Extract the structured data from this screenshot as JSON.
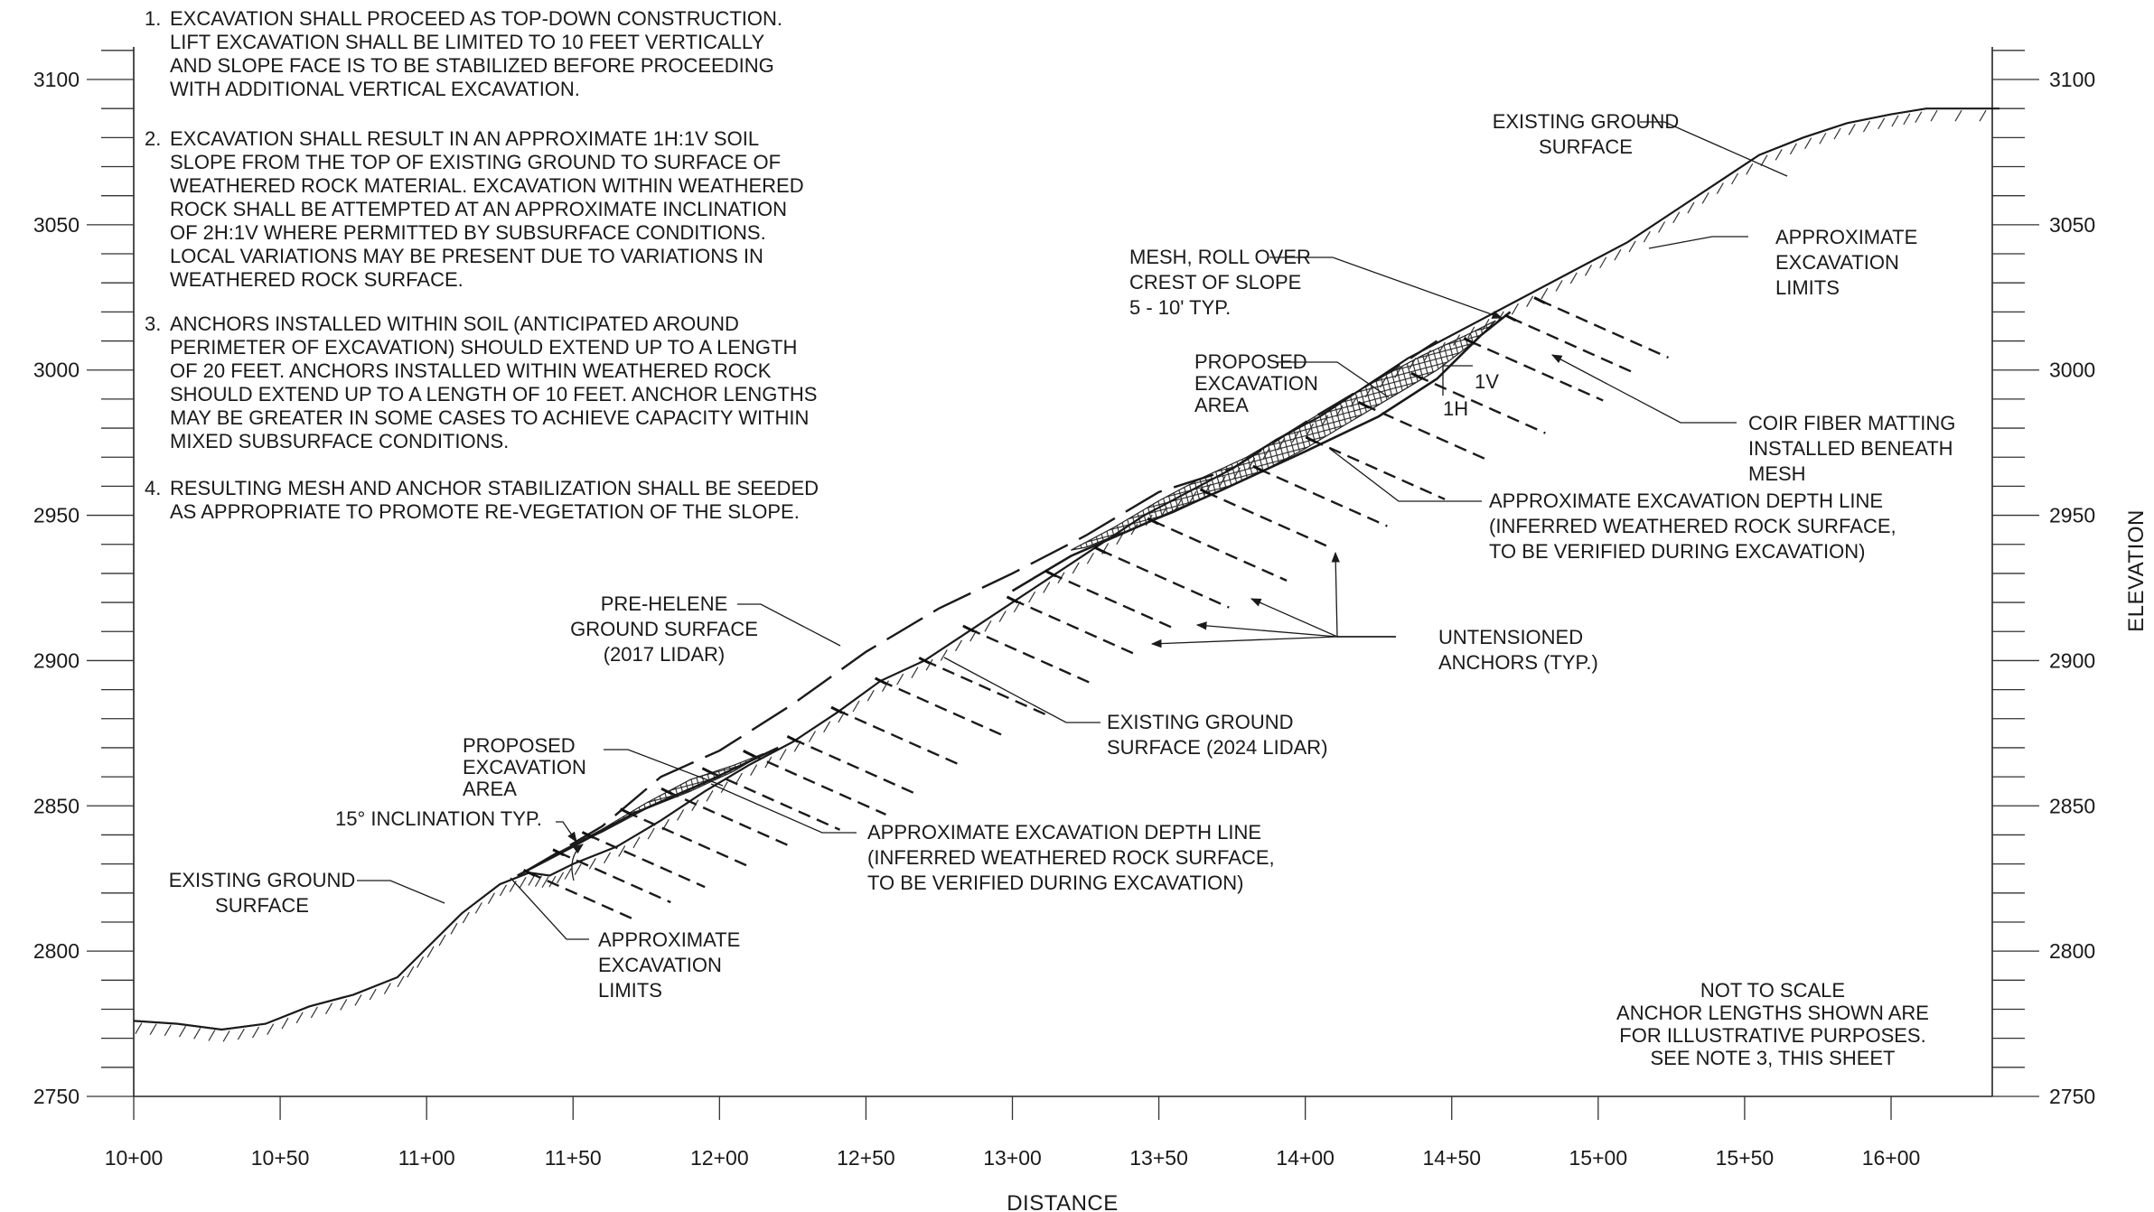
{
  "notes": [
    {
      "number": "1.",
      "lines": [
        "EXCAVATION SHALL PROCEED AS TOP-DOWN CONSTRUCTION.",
        "LIFT EXCAVATION SHALL BE LIMITED TO 10 FEET VERTICALLY",
        "AND SLOPE FACE IS TO BE STABILIZED BEFORE PROCEEDING",
        "WITH ADDITIONAL VERTICAL EXCAVATION."
      ]
    },
    {
      "number": "2.",
      "lines": [
        "EXCAVATION SHALL RESULT IN AN APPROXIMATE 1H:1V SOIL",
        "SLOPE FROM THE TOP OF EXISTING GROUND TO SURFACE OF",
        "WEATHERED ROCK MATERIAL. EXCAVATION WITHIN WEATHERED",
        "ROCK SHALL BE ATTEMPTED AT AN APPROXIMATE INCLINATION",
        "OF 2H:1V WHERE PERMITTED BY SUBSURFACE CONDITIONS.",
        "LOCAL VARIATIONS MAY BE PRESENT DUE TO VARIATIONS IN",
        "WEATHERED ROCK SURFACE."
      ]
    },
    {
      "number": "3.",
      "lines": [
        "ANCHORS INSTALLED WITHIN SOIL (ANTICIPATED AROUND",
        "PERIMETER OF EXCAVATION) SHOULD EXTEND UP TO A LENGTH",
        "OF 20 FEET. ANCHORS INSTALLED WITHIN WEATHERED ROCK",
        "SHOULD EXTEND UP TO A LENGTH OF 10 FEET. ANCHOR LENGTHS",
        "MAY BE GREATER IN SOME CASES TO ACHIEVE CAPACITY WITHIN",
        "MIXED SUBSURFACE CONDITIONS."
      ]
    },
    {
      "number": "4.",
      "lines": [
        "RESULTING MESH AND ANCHOR STABILIZATION SHALL BE SEEDED",
        "AS APPROPRIATE TO PROMOTE RE-VEGETATION OF THE SLOPE."
      ]
    }
  ],
  "axes": {
    "y_title": "ELEVATION",
    "x_title": "DISTANCE",
    "y_ticks": [
      "3100",
      "3050",
      "3000",
      "2950",
      "2900",
      "2850",
      "2800",
      "2750"
    ],
    "y_values": [
      3100,
      3050,
      3000,
      2950,
      2900,
      2850,
      2800,
      2750
    ],
    "x_ticks": [
      "10+00",
      "10+50",
      "11+00",
      "11+50",
      "12+00",
      "12+50",
      "13+00",
      "13+50",
      "14+00",
      "14+50",
      "15+00",
      "15+50",
      "16+00"
    ],
    "x_values": [
      1000,
      1050,
      1100,
      1150,
      1200,
      1250,
      1300,
      1350,
      1400,
      1450,
      1500,
      1550,
      1600
    ]
  },
  "callouts": {
    "existing_ground_top": [
      "EXISTING GROUND",
      "SURFACE"
    ],
    "approx_limits_top": [
      "APPROXIMATE",
      "EXCAVATION",
      "LIMITS"
    ],
    "mesh_roll": [
      "MESH,  ROLL OVER",
      "CREST OF SLOPE",
      "5 - 10' TYP."
    ],
    "proposed_area_upper": [
      "PROPOSED",
      "EXCAVATION",
      "AREA"
    ],
    "coir": [
      "COIR FIBER MATTING",
      "INSTALLED BENEATH",
      "MESH"
    ],
    "depth_line_upper": [
      "APPROXIMATE EXCAVATION DEPTH LINE",
      "(INFERRED WEATHERED ROCK SURFACE,",
      "TO BE VERIFIED DURING EXCAVATION)"
    ],
    "pre_helene": [
      "PRE-HELENE",
      "GROUND SURFACE",
      "(2017 LIDAR)"
    ],
    "anchors": [
      "UNTENSIONED",
      "ANCHORS (TYP.)"
    ],
    "existing_2024": [
      "EXISTING GROUND",
      "SURFACE (2024 LIDAR)"
    ],
    "proposed_area_lower": [
      "PROPOSED",
      "EXCAVATION",
      "AREA"
    ],
    "inclination": "15° INCLINATION TYP.",
    "depth_line_lower": [
      "APPROXIMATE EXCAVATION DEPTH LINE",
      "(INFERRED WEATHERED ROCK SURFACE,",
      "TO BE VERIFIED DURING EXCAVATION)"
    ],
    "existing_ground_left": [
      "EXISTING GROUND",
      "SURFACE"
    ],
    "approx_limits_lower": [
      "APPROXIMATE",
      "EXCAVATION",
      "LIMITS"
    ],
    "slope_1v": "1V",
    "slope_1h": "1H",
    "not_to_scale": [
      "NOT TO SCALE",
      "ANCHOR LENGTHS SHOWN ARE",
      "FOR ILLUSTRATIVE PURPOSES.",
      "SEE NOTE 3, THIS SHEET"
    ]
  },
  "profile": {
    "existing_ground_2024": [
      [
        1000,
        2776
      ],
      [
        1015,
        2775
      ],
      [
        1030,
        2773
      ],
      [
        1045,
        2775
      ],
      [
        1060,
        2781
      ],
      [
        1075,
        2785
      ],
      [
        1090,
        2791
      ],
      [
        1100,
        2801
      ],
      [
        1112,
        2813
      ],
      [
        1125,
        2823
      ],
      [
        1135,
        2827
      ],
      [
        1142,
        2826
      ],
      [
        1150,
        2830
      ],
      [
        1165,
        2836
      ],
      [
        1180,
        2845
      ],
      [
        1195,
        2855
      ],
      [
        1210,
        2864
      ],
      [
        1225,
        2872
      ],
      [
        1240,
        2882
      ],
      [
        1255,
        2893
      ],
      [
        1270,
        2900
      ],
      [
        1285,
        2910
      ],
      [
        1300,
        2920
      ],
      [
        1315,
        2930
      ],
      [
        1330,
        2940
      ],
      [
        1345,
        2950
      ],
      [
        1360,
        2958
      ],
      [
        1375,
        2966
      ],
      [
        1390,
        2976
      ],
      [
        1405,
        2984
      ],
      [
        1420,
        2994
      ],
      [
        1435,
        3004
      ],
      [
        1450,
        3012
      ],
      [
        1465,
        3020
      ],
      [
        1480,
        3028
      ],
      [
        1495,
        3036
      ],
      [
        1510,
        3044
      ],
      [
        1525,
        3054
      ],
      [
        1540,
        3064
      ],
      [
        1555,
        3074
      ],
      [
        1570,
        3080
      ],
      [
        1585,
        3085
      ],
      [
        1600,
        3088
      ],
      [
        1612,
        3090
      ],
      [
        1637,
        3090
      ]
    ],
    "pre_helene_2017": [
      [
        1133,
        2827
      ],
      [
        1160,
        2843
      ],
      [
        1180,
        2860
      ],
      [
        1200,
        2869
      ],
      [
        1225,
        2885
      ],
      [
        1250,
        2903
      ],
      [
        1275,
        2918
      ],
      [
        1300,
        2930
      ],
      [
        1325,
        2943
      ],
      [
        1350,
        2958
      ],
      [
        1375,
        2966
      ],
      [
        1400,
        2982
      ],
      [
        1425,
        2997
      ],
      [
        1445,
        3010
      ]
    ],
    "depth_line_upper": [
      [
        1300,
        2924
      ],
      [
        1320,
        2936
      ],
      [
        1345,
        2947
      ],
      [
        1370,
        2958
      ],
      [
        1400,
        2972
      ],
      [
        1425,
        2984
      ],
      [
        1445,
        2997
      ],
      [
        1460,
        3012
      ],
      [
        1470,
        3020
      ]
    ],
    "depth_line_lower": [
      [
        1131,
        2826
      ],
      [
        1150,
        2836
      ],
      [
        1170,
        2847
      ],
      [
        1195,
        2858
      ],
      [
        1220,
        2870
      ]
    ],
    "mesh_upper": [
      [
        1320,
        2938
      ],
      [
        1335,
        2946
      ],
      [
        1350,
        2955
      ],
      [
        1365,
        2963
      ],
      [
        1380,
        2970
      ],
      [
        1395,
        2979
      ],
      [
        1410,
        2988
      ],
      [
        1425,
        2997
      ],
      [
        1440,
        3005
      ],
      [
        1455,
        3012
      ],
      [
        1465,
        3017
      ],
      [
        1458,
        3010
      ],
      [
        1445,
        3000
      ],
      [
        1430,
        2991
      ],
      [
        1415,
        2982
      ],
      [
        1400,
        2973
      ],
      [
        1385,
        2965
      ],
      [
        1370,
        2958
      ],
      [
        1355,
        2951
      ],
      [
        1340,
        2945
      ],
      [
        1325,
        2939
      ]
    ],
    "mesh_lower": [
      [
        1133,
        2827
      ],
      [
        1145,
        2834
      ],
      [
        1160,
        2842
      ],
      [
        1175,
        2851
      ],
      [
        1190,
        2859
      ],
      [
        1205,
        2864
      ],
      [
        1215,
        2868
      ],
      [
        1205,
        2862
      ],
      [
        1190,
        2855
      ],
      [
        1175,
        2849
      ],
      [
        1160,
        2841
      ],
      [
        1145,
        2834
      ],
      [
        1133,
        2827
      ]
    ],
    "anchors_lower": [
      [
        1135,
        2827
      ],
      [
        1145,
        2834
      ],
      [
        1155,
        2840
      ],
      [
        1168,
        2848
      ],
      [
        1182,
        2855
      ],
      [
        1196,
        2862
      ],
      [
        1210,
        2868
      ],
      [
        1225,
        2873
      ],
      [
        1240,
        2883
      ],
      [
        1255,
        2893
      ],
      [
        1270,
        2900
      ],
      [
        1285,
        2911
      ],
      [
        1300,
        2921
      ]
    ],
    "anchors_upper": [
      [
        1313,
        2930
      ],
      [
        1330,
        2938
      ],
      [
        1348,
        2948
      ],
      [
        1366,
        2958
      ],
      [
        1384,
        2966
      ],
      [
        1402,
        2976
      ],
      [
        1420,
        2988
      ],
      [
        1438,
        2998
      ],
      [
        1456,
        3010
      ],
      [
        1470,
        3018
      ],
      [
        1480,
        3024
      ]
    ]
  }
}
